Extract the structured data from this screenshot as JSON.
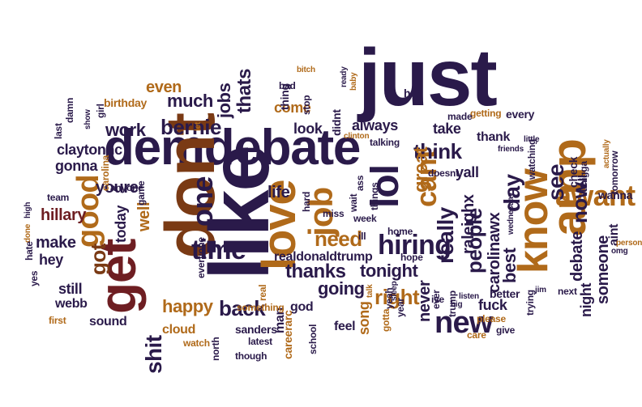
{
  "palette": {
    "navy": "#2a1a4a",
    "brown": "#7a3a14",
    "amber": "#b06a1a",
    "gold": "#c99a3a",
    "maroon": "#6e1e22",
    "rust": "#9e4a1a",
    "tan": "#b89a60"
  },
  "words": [
    {
      "text": "just",
      "color": "navy"
    },
    {
      "text": "demdebate",
      "color": "navy"
    },
    {
      "text": "dont",
      "color": "brown"
    },
    {
      "text": "like",
      "color": "navy"
    },
    {
      "text": "get",
      "color": "maroon"
    },
    {
      "text": "amp",
      "color": "amber"
    },
    {
      "text": "love",
      "color": "amber"
    },
    {
      "text": "lol",
      "color": "navy"
    },
    {
      "text": "know",
      "color": "amber"
    },
    {
      "text": "awant",
      "color": "amber"
    },
    {
      "text": "job",
      "color": "amber"
    },
    {
      "text": "good",
      "color": "amber"
    },
    {
      "text": "cant",
      "color": "amber"
    },
    {
      "text": "bernie",
      "color": "navy"
    },
    {
      "text": "one",
      "color": "navy"
    },
    {
      "text": "time",
      "color": "navy"
    },
    {
      "text": "people",
      "color": "navy"
    },
    {
      "text": "new",
      "color": "navy"
    },
    {
      "text": "hiring",
      "color": "navy"
    },
    {
      "text": "really",
      "color": "navy"
    },
    {
      "text": "see",
      "color": "navy"
    },
    {
      "text": "now",
      "color": "navy"
    },
    {
      "text": "day",
      "color": "navy"
    },
    {
      "text": "think",
      "color": "navy"
    },
    {
      "text": "great",
      "color": "amber"
    },
    {
      "text": "got",
      "color": "brown"
    },
    {
      "text": "need",
      "color": "amber"
    },
    {
      "text": "back",
      "color": "navy"
    },
    {
      "text": "shit",
      "color": "navy"
    },
    {
      "text": "right",
      "color": "amber"
    },
    {
      "text": "going",
      "color": "navy"
    },
    {
      "text": "tonight",
      "color": "navy"
    },
    {
      "text": "thanks",
      "color": "navy"
    },
    {
      "text": "happy",
      "color": "amber"
    },
    {
      "text": "much",
      "color": "navy"
    },
    {
      "text": "even",
      "color": "amber"
    },
    {
      "text": "work",
      "color": "navy"
    },
    {
      "text": "youre",
      "color": "navy"
    },
    {
      "text": "hillary",
      "color": "maroon"
    },
    {
      "text": "make",
      "color": "navy"
    },
    {
      "text": "hey",
      "color": "navy"
    },
    {
      "text": "gonna",
      "color": "navy"
    },
    {
      "text": "claytonnc",
      "color": "navy"
    },
    {
      "text": "thats",
      "color": "navy"
    },
    {
      "text": "jobs",
      "color": "navy"
    },
    {
      "text": "life",
      "color": "navy"
    },
    {
      "text": "come",
      "color": "amber"
    },
    {
      "text": "look",
      "color": "navy"
    },
    {
      "text": "always",
      "color": "navy"
    },
    {
      "text": "take",
      "color": "navy"
    },
    {
      "text": "yall",
      "color": "navy"
    },
    {
      "text": "thank",
      "color": "navy"
    },
    {
      "text": "best",
      "color": "navy"
    },
    {
      "text": "night",
      "color": "navy"
    },
    {
      "text": "debate",
      "color": "navy"
    },
    {
      "text": "someone",
      "color": "navy"
    },
    {
      "text": "never",
      "color": "navy"
    },
    {
      "text": "raleighx",
      "color": "navy"
    },
    {
      "text": "carolinawx",
      "color": "navy"
    },
    {
      "text": "realdonaldtrump",
      "color": "navy"
    },
    {
      "text": "still",
      "color": "navy"
    },
    {
      "text": "today",
      "color": "navy"
    },
    {
      "text": "well",
      "color": "amber"
    },
    {
      "text": "webb",
      "color": "navy"
    },
    {
      "text": "sound",
      "color": "navy"
    },
    {
      "text": "cloud",
      "color": "amber"
    },
    {
      "text": "fuck",
      "color": "navy"
    },
    {
      "text": "better",
      "color": "navy"
    },
    {
      "text": "man",
      "color": "navy"
    },
    {
      "text": "song",
      "color": "amber"
    },
    {
      "text": "feel",
      "color": "navy"
    },
    {
      "text": "god",
      "color": "navy"
    },
    {
      "text": "sanders",
      "color": "navy"
    },
    {
      "text": "careerarc",
      "color": "amber"
    },
    {
      "text": "wanna",
      "color": "navy"
    },
    {
      "text": "tell",
      "color": "navy"
    },
    {
      "text": "check",
      "color": "navy"
    },
    {
      "text": "aint",
      "color": "navy"
    },
    {
      "text": "every",
      "color": "navy"
    },
    {
      "text": "getting",
      "color": "amber"
    },
    {
      "text": "hes",
      "color": "navy"
    },
    {
      "text": "made",
      "color": "navy"
    },
    {
      "text": "didnt",
      "color": "navy"
    },
    {
      "text": "thing",
      "color": "navy"
    },
    {
      "text": "bad",
      "color": "navy"
    },
    {
      "text": "birthday",
      "color": "amber"
    },
    {
      "text": "first",
      "color": "amber"
    },
    {
      "text": "hard",
      "color": "navy"
    },
    {
      "text": "miss",
      "color": "navy"
    },
    {
      "text": "home",
      "color": "navy"
    },
    {
      "text": "hope",
      "color": "navy"
    },
    {
      "text": "year",
      "color": "navy"
    },
    {
      "text": "school",
      "color": "navy"
    },
    {
      "text": "latest",
      "color": "navy"
    },
    {
      "text": "north",
      "color": "navy"
    },
    {
      "text": "watch",
      "color": "amber"
    },
    {
      "text": "give",
      "color": "navy"
    },
    {
      "text": "please",
      "color": "amber"
    },
    {
      "text": "care",
      "color": "amber"
    },
    {
      "text": "trying",
      "color": "navy"
    },
    {
      "text": "jim",
      "color": "navy"
    },
    {
      "text": "next",
      "color": "navy"
    },
    {
      "text": "tomorrow",
      "color": "navy"
    },
    {
      "text": "omg",
      "color": "navy"
    },
    {
      "text": "person",
      "color": "amber"
    },
    {
      "text": "nigga",
      "color": "navy"
    },
    {
      "text": "watching",
      "color": "navy"
    },
    {
      "text": "little",
      "color": "navy"
    },
    {
      "text": "friends",
      "color": "navy"
    },
    {
      "text": "actually",
      "color": "amber"
    },
    {
      "text": "wednesday",
      "color": "navy"
    },
    {
      "text": "doesnt",
      "color": "navy"
    },
    {
      "text": "talking",
      "color": "navy"
    },
    {
      "text": "clinton",
      "color": "amber"
    },
    {
      "text": "stop",
      "color": "navy"
    },
    {
      "text": "ready",
      "color": "navy"
    },
    {
      "text": "baby",
      "color": "amber"
    },
    {
      "text": "bitch",
      "color": "amber"
    },
    {
      "text": "let",
      "color": "amber"
    },
    {
      "text": "girl",
      "color": "navy"
    },
    {
      "text": "show",
      "color": "navy"
    },
    {
      "text": "damn",
      "color": "navy"
    },
    {
      "text": "last",
      "color": "navy"
    },
    {
      "text": "team",
      "color": "navy"
    },
    {
      "text": "high",
      "color": "navy"
    },
    {
      "text": "carolina",
      "color": "amber"
    },
    {
      "text": "anyone",
      "color": "navy"
    },
    {
      "text": "game",
      "color": "navy"
    },
    {
      "text": "done",
      "color": "amber"
    },
    {
      "text": "hate",
      "color": "navy"
    },
    {
      "text": "yes",
      "color": "navy"
    },
    {
      "text": "everyone",
      "color": "navy"
    },
    {
      "text": "something",
      "color": "amber"
    },
    {
      "text": "real",
      "color": "amber"
    },
    {
      "text": "though",
      "color": "navy"
    },
    {
      "text": "talk",
      "color": "amber"
    },
    {
      "text": "trump",
      "color": "navy"
    },
    {
      "text": "ever",
      "color": "navy"
    },
    {
      "text": "ive",
      "color": "navy"
    },
    {
      "text": "yeah",
      "color": "navy"
    },
    {
      "text": "sleep",
      "color": "navy"
    },
    {
      "text": "gotta",
      "color": "amber"
    },
    {
      "text": "big",
      "color": "navy"
    },
    {
      "text": "listen",
      "color": "navy"
    },
    {
      "text": "week",
      "color": "navy"
    },
    {
      "text": "wait",
      "color": "navy"
    },
    {
      "text": "ass",
      "color": "navy"
    },
    {
      "text": "things",
      "color": "navy"
    },
    {
      "text": "ill",
      "color": "navy"
    }
  ]
}
